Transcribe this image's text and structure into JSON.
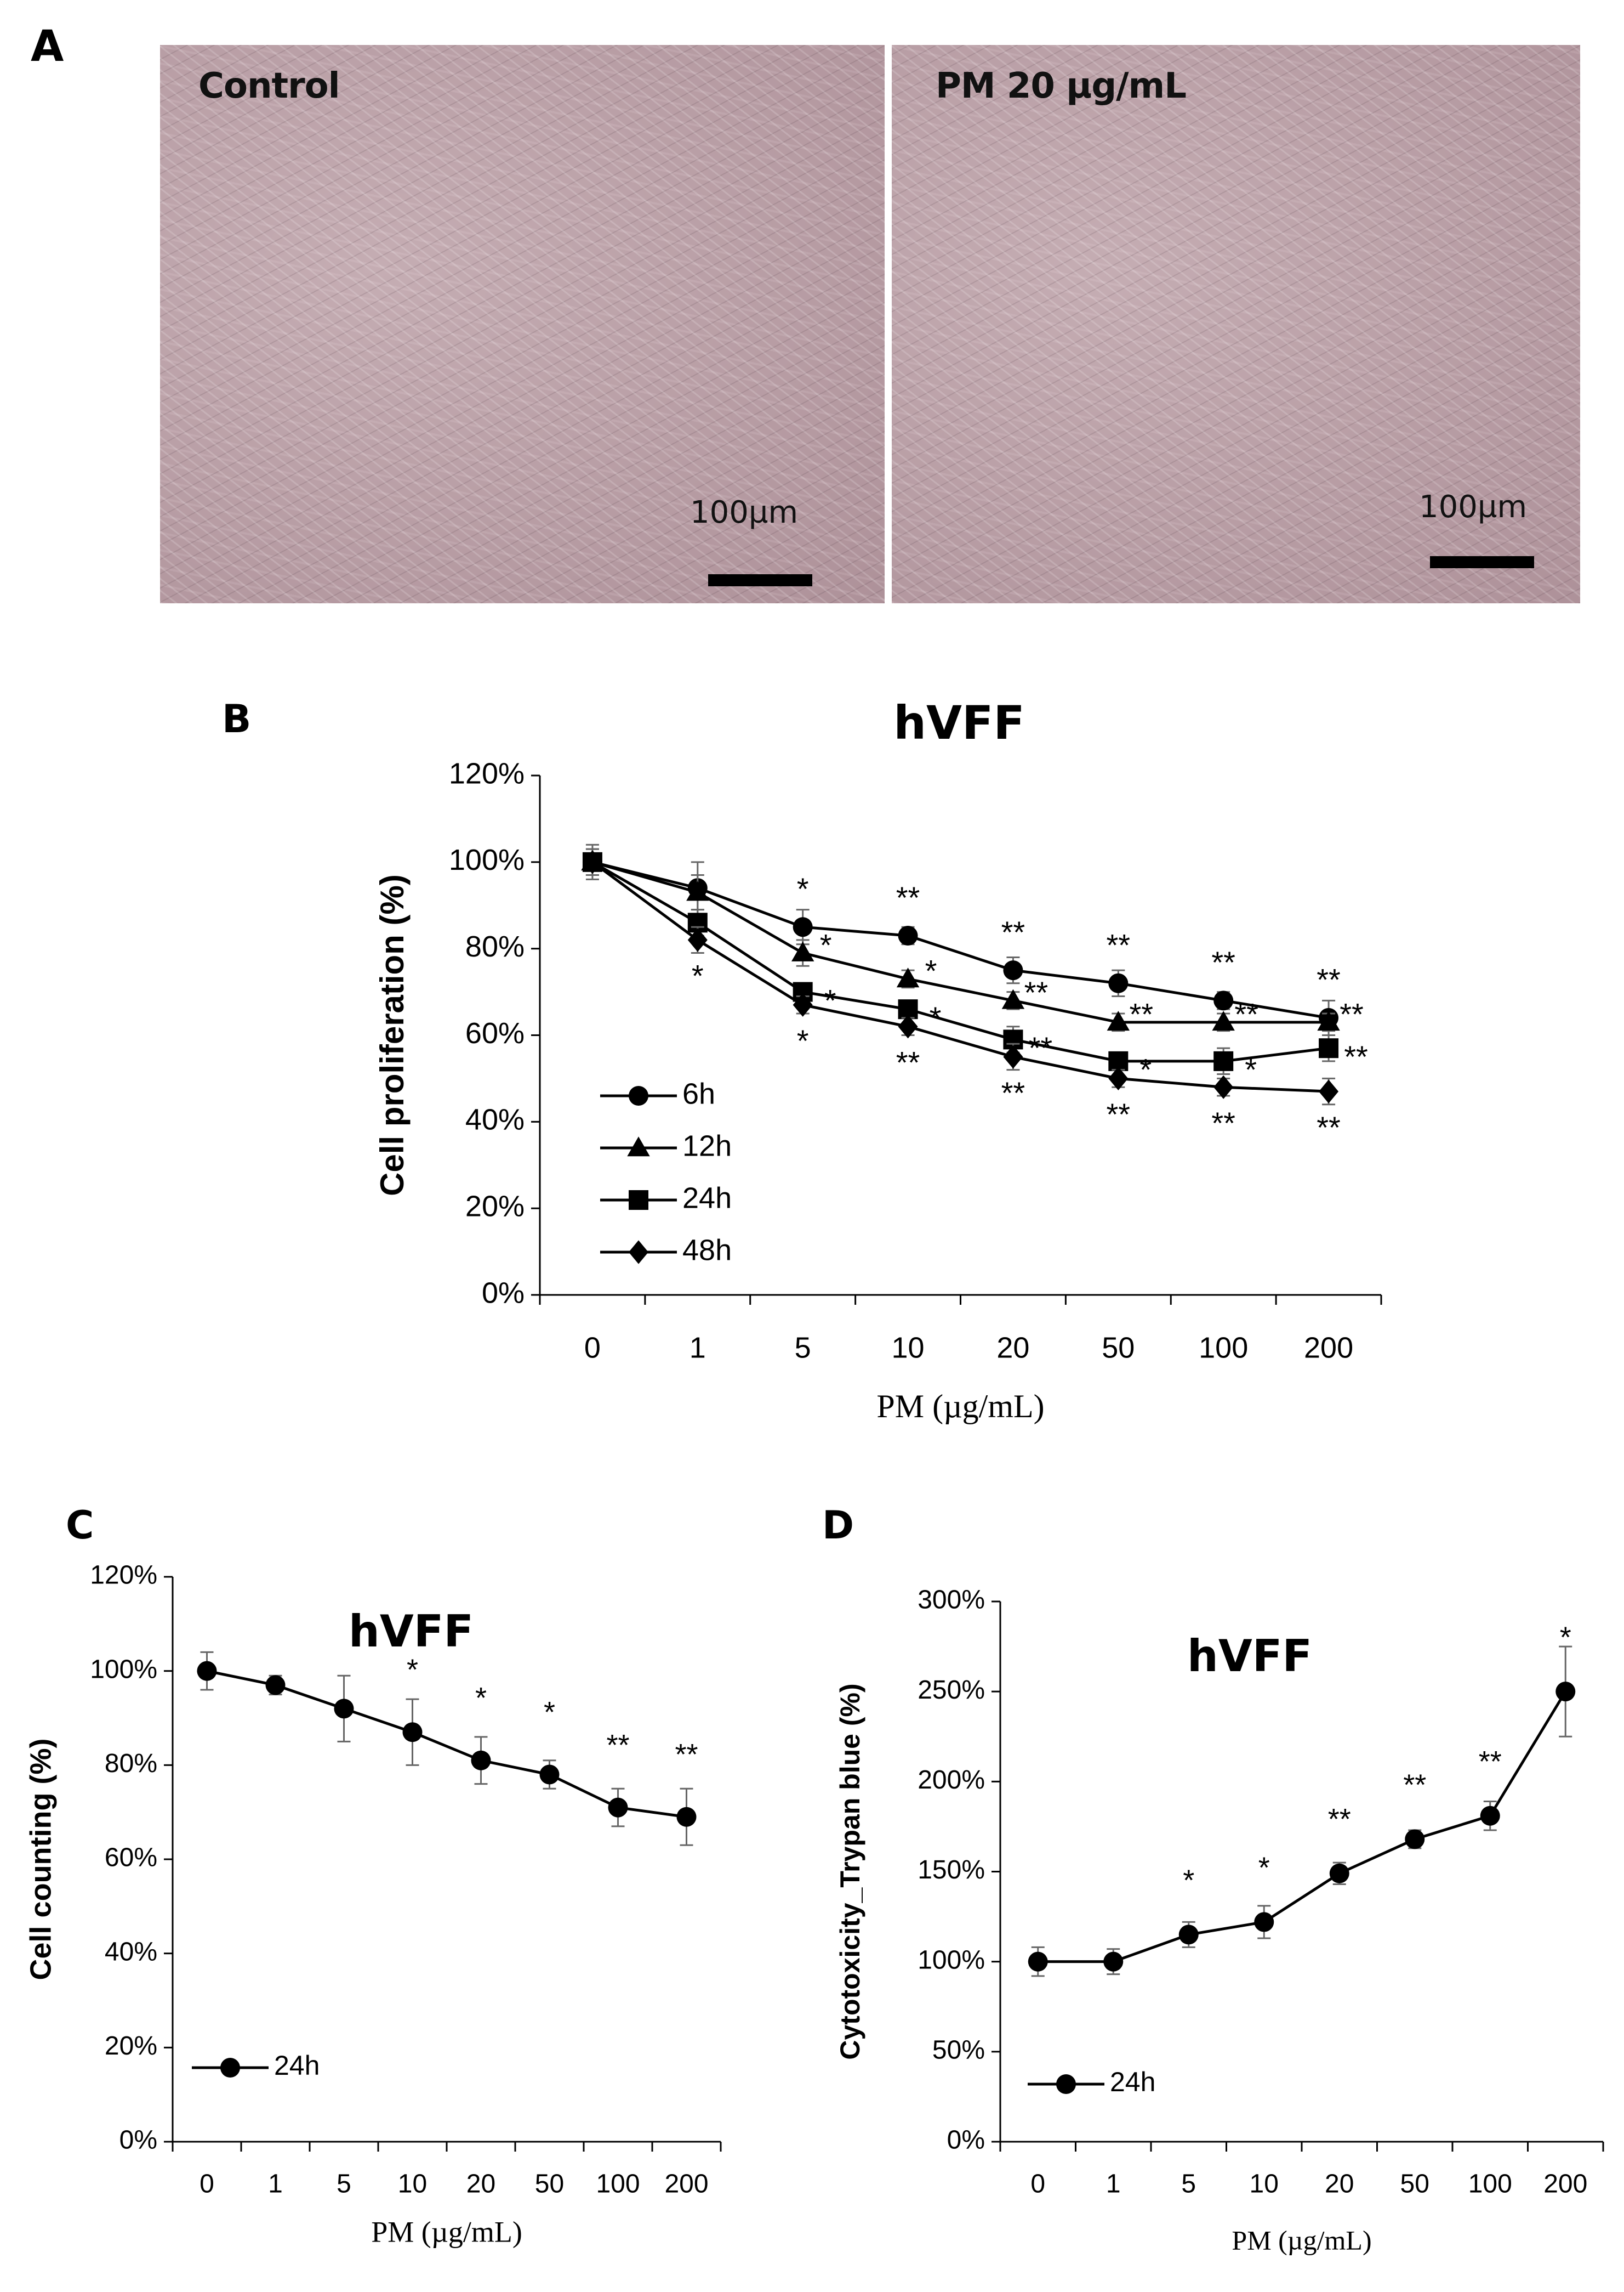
{
  "panel_a": {
    "letter": "A",
    "images": [
      {
        "label": "Control",
        "scale_label": "100µm"
      },
      {
        "label": "PM 20 µg/mL",
        "scale_label": "100µm"
      }
    ]
  },
  "panel_b_letter": "B",
  "panel_c_letter": "C",
  "panel_d_letter": "D",
  "chart_data": [
    {
      "type": "line",
      "panel": "B",
      "title": "hVFF",
      "xlabel": "PM (µg/mL)",
      "ylabel": "Cell proliferation (%)",
      "categories": [
        "0",
        "1",
        "5",
        "10",
        "20",
        "50",
        "100",
        "200"
      ],
      "ylim": [
        0,
        120
      ],
      "yticks": [
        "0%",
        "20%",
        "40%",
        "60%",
        "80%",
        "100%",
        "120%"
      ],
      "legend_position": "bottom-left",
      "series": [
        {
          "name": "6h",
          "marker": "circle",
          "values": [
            100,
            94,
            85,
            83,
            75,
            72,
            68,
            64
          ],
          "errors": [
            4,
            6,
            4,
            2,
            3,
            3,
            2,
            4
          ],
          "stars": [
            "",
            "",
            "*",
            "**",
            "**",
            "**",
            "**",
            "**"
          ]
        },
        {
          "name": "12h",
          "marker": "triangle",
          "values": [
            100,
            93,
            79,
            73,
            68,
            63,
            63,
            63
          ],
          "errors": [
            3,
            4,
            3,
            2,
            2,
            2,
            2,
            2
          ],
          "stars": [
            "",
            "",
            "*",
            "*",
            "**",
            "**",
            "**",
            "**"
          ]
        },
        {
          "name": "24h",
          "marker": "square",
          "values": [
            100,
            86,
            70,
            66,
            59,
            54,
            54,
            57
          ],
          "errors": [
            3,
            3,
            2,
            2,
            3,
            2,
            3,
            3
          ],
          "stars": [
            "",
            "",
            "*",
            "*",
            "**",
            "*",
            "*",
            "**"
          ]
        },
        {
          "name": "48h",
          "marker": "diamond",
          "values": [
            100,
            82,
            67,
            62,
            55,
            50,
            48,
            47
          ],
          "errors": [
            3,
            3,
            2,
            2,
            3,
            2,
            2,
            3
          ],
          "stars": [
            "",
            "*",
            "*",
            "**",
            "**",
            "**",
            "**",
            "**"
          ]
        }
      ]
    },
    {
      "type": "line",
      "panel": "C",
      "title": "hVFF",
      "xlabel": "PM (µg/mL)",
      "ylabel": "Cell counting (%)",
      "categories": [
        "0",
        "1",
        "5",
        "10",
        "20",
        "50",
        "100",
        "200"
      ],
      "ylim": [
        0,
        120
      ],
      "yticks": [
        "0%",
        "20%",
        "40%",
        "60%",
        "80%",
        "100%",
        "120%"
      ],
      "legend_position": "bottom-left",
      "series": [
        {
          "name": "24h",
          "marker": "circle",
          "values": [
            100,
            97,
            92,
            87,
            81,
            78,
            71,
            69
          ],
          "errors": [
            4,
            2,
            7,
            7,
            5,
            3,
            4,
            6
          ],
          "stars": [
            "",
            "",
            "",
            "*",
            "*",
            "*",
            "**",
            "**"
          ]
        }
      ]
    },
    {
      "type": "line",
      "panel": "D",
      "title": "hVFF",
      "xlabel": "PM (µg/mL)",
      "ylabel": "Cytotoxicity_Trypan blue (%)",
      "categories": [
        "0",
        "1",
        "5",
        "10",
        "20",
        "50",
        "100",
        "200"
      ],
      "ylim": [
        0,
        300
      ],
      "yticks": [
        "0%",
        "50%",
        "100%",
        "150%",
        "200%",
        "250%",
        "300%"
      ],
      "legend_position": "bottom-left",
      "series": [
        {
          "name": "24h",
          "marker": "circle",
          "values": [
            100,
            100,
            115,
            122,
            149,
            168,
            181,
            250
          ],
          "errors": [
            8,
            7,
            7,
            9,
            6,
            5,
            8,
            25
          ],
          "stars": [
            "",
            "",
            "*",
            "*",
            "**",
            "**",
            "**",
            "*"
          ]
        }
      ]
    }
  ]
}
